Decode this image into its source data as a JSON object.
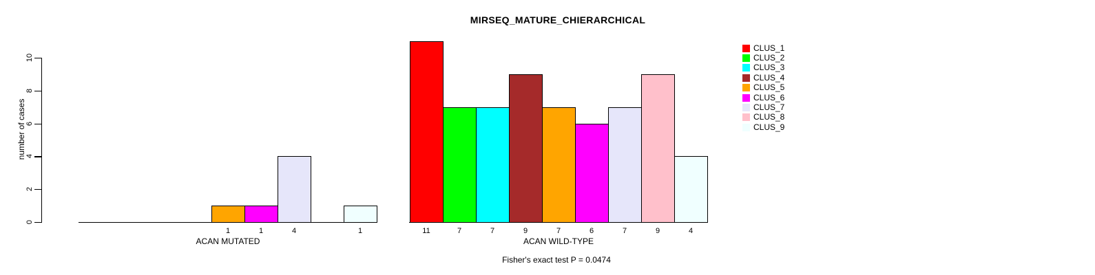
{
  "title": "MIRSEQ_MATURE_CHIERARCHICAL",
  "caption": "Fisher's exact test P = 0.0474",
  "chart_data": {
    "type": "bar",
    "title": "MIRSEQ_MATURE_CHIERARCHICAL",
    "xlabel": "",
    "ylabel": "number of cases",
    "ylim": [
      0,
      10
    ],
    "yticks": [
      0,
      2,
      4,
      6,
      8,
      10
    ],
    "grid": false,
    "legend_position": "right",
    "legend_entries": [
      "CLUS_1",
      "CLUS_2",
      "CLUS_3",
      "CLUS_4",
      "CLUS_5",
      "CLUS_6",
      "CLUS_7",
      "CLUS_8",
      "CLUS_9"
    ],
    "colors": [
      "#FF0000",
      "#00FF00",
      "#00FFFF",
      "#A52A2A",
      "#FFA500",
      "#FF00FF",
      "#E6E6FA",
      "#FFC0CB",
      "#F0FFFF"
    ],
    "bar_border_color": "#000000",
    "groups": [
      {
        "label": "ACAN MUTATED",
        "values": [
          0,
          0,
          0,
          0,
          1,
          1,
          4,
          0,
          1
        ]
      },
      {
        "label": "ACAN WILD-TYPE",
        "values": [
          11,
          7,
          7,
          9,
          7,
          6,
          7,
          9,
          4
        ]
      }
    ],
    "annotation": "Fisher's exact test P = 0.0474"
  }
}
